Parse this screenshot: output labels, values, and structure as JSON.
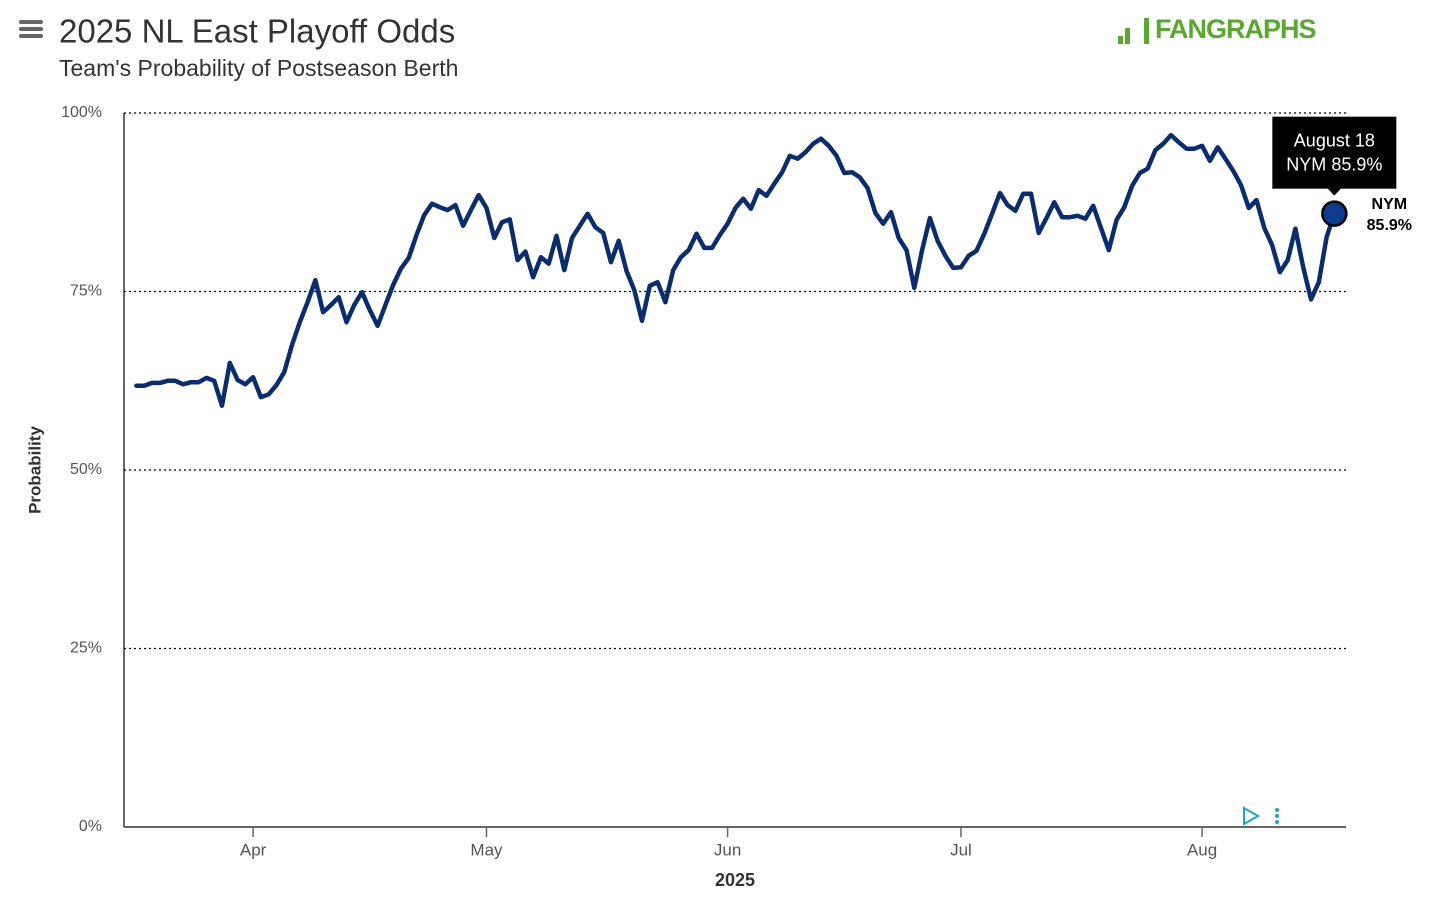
{
  "chart_data": {
    "type": "line",
    "title": "2025 NL East Playoff Odds",
    "subtitle": "Team's Probability of Postseason Berth",
    "brand": "FANGRAPHS",
    "y_label": "Probability",
    "x_label": "2025",
    "x": [
      76,
      77,
      78,
      79,
      80,
      81,
      82,
      83,
      84,
      85,
      86,
      87,
      88,
      89,
      90,
      91,
      92,
      93,
      94,
      95,
      96,
      97,
      98,
      99,
      100,
      101,
      102,
      103,
      104,
      105,
      106,
      107,
      108,
      109,
      110,
      111,
      112,
      113,
      114,
      115,
      116,
      117,
      118,
      119,
      120,
      121,
      122,
      123,
      124,
      125,
      126,
      127,
      128,
      129,
      130,
      131,
      132,
      133,
      134,
      135,
      136,
      137,
      138,
      139,
      140,
      141,
      142,
      143,
      144,
      145,
      146,
      147,
      148,
      149,
      150,
      151,
      152,
      153,
      154,
      155,
      156,
      157,
      158,
      159,
      160,
      161,
      162,
      163,
      164,
      165,
      166,
      167,
      168,
      169,
      170,
      171,
      172,
      173,
      174,
      175,
      176,
      177,
      178,
      179,
      180,
      181,
      182,
      183,
      184,
      185,
      186,
      187,
      188,
      189,
      190,
      191,
      192,
      193,
      194,
      195,
      196,
      197,
      198,
      199,
      200,
      201,
      202,
      203,
      204,
      205,
      206,
      207,
      208,
      209,
      210,
      211,
      212,
      213,
      214,
      215,
      216,
      217,
      218,
      219,
      220,
      221,
      222,
      223,
      224,
      225,
      226,
      227,
      228,
      229,
      230
    ],
    "series": [
      {
        "name": "NYM",
        "color": "#0b2d6e",
        "marker_color": "#0d3b8e",
        "values": [
          61.8,
          61.8,
          62.2,
          62.2,
          62.5,
          62.5,
          62.0,
          62.3,
          62.3,
          62.9,
          62.5,
          59.0,
          65.0,
          62.6,
          62.0,
          63.0,
          60.2,
          60.6,
          61.9,
          63.7,
          67.5,
          70.7,
          73.5,
          76.6,
          72.1,
          73.1,
          74.2,
          70.7,
          73.1,
          74.9,
          72.4,
          70.2,
          73.1,
          75.9,
          78.2,
          79.7,
          82.9,
          85.7,
          87.3,
          86.8,
          86.4,
          87.1,
          84.2,
          86.4,
          88.5,
          86.7,
          82.5,
          84.7,
          85.1,
          79.4,
          80.6,
          77.0,
          79.8,
          78.9,
          82.8,
          78.0,
          82.5,
          84.2,
          85.9,
          84.0,
          83.2,
          79.1,
          82.1,
          77.9,
          75.2,
          70.9,
          75.8,
          76.3,
          73.5,
          78.0,
          79.8,
          80.8,
          83.1,
          81.1,
          81.1,
          82.9,
          84.5,
          86.7,
          88.0,
          86.6,
          89.2,
          88.4,
          90.1,
          91.7,
          94.0,
          93.6,
          94.5,
          95.7,
          96.4,
          95.4,
          94.0,
          91.6,
          91.7,
          91.0,
          89.5,
          86.0,
          84.5,
          86.1,
          82.5,
          80.8,
          75.5,
          80.8,
          85.3,
          82.1,
          80.0,
          78.3,
          78.4,
          80.0,
          80.7,
          83.1,
          85.9,
          88.8,
          87.1,
          86.3,
          88.7,
          88.7,
          83.2,
          85.3,
          87.5,
          85.4,
          85.4,
          85.6,
          85.2,
          87.0,
          83.9,
          80.8,
          85.0,
          86.8,
          89.8,
          91.6,
          92.2,
          94.8,
          95.7,
          96.9,
          95.9,
          95.0,
          95.0,
          95.4,
          93.3,
          95.2,
          93.6,
          91.9,
          89.9,
          86.7,
          87.8,
          83.9,
          81.5,
          77.7,
          79.4,
          83.8,
          78.4,
          73.9,
          76.3,
          82.6,
          85.9
        ],
        "last_value_label": "85.9%"
      }
    ],
    "tooltip_date": "August 18",
    "xlim": [
      74.4,
      231.5
    ],
    "xticks": [
      {
        "value": 91,
        "label": "Apr"
      },
      {
        "value": 121,
        "label": "May"
      },
      {
        "value": 152,
        "label": "Jun"
      },
      {
        "value": 182,
        "label": "Jul"
      },
      {
        "value": 213,
        "label": "Aug"
      }
    ],
    "ylim": [
      0,
      100
    ],
    "yticks": [
      {
        "value": 0,
        "label": "0%"
      },
      {
        "value": 25,
        "label": "25%"
      },
      {
        "value": 50,
        "label": "50%"
      },
      {
        "value": 75,
        "label": "75%"
      },
      {
        "value": 100,
        "label": "100%"
      }
    ],
    "grid": true
  }
}
